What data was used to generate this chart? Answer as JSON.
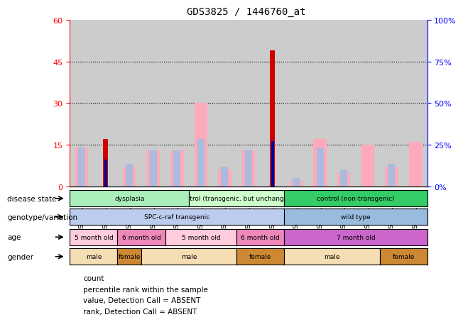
{
  "title": "GDS3825 / 1446760_at",
  "samples": [
    "GSM351067",
    "GSM351068",
    "GSM351066",
    "GSM351065",
    "GSM351069",
    "GSM351072",
    "GSM351094",
    "GSM351071",
    "GSM351064",
    "GSM351070",
    "GSM351095",
    "GSM351144",
    "GSM351146",
    "GSM351145",
    "GSM351147"
  ],
  "count_values": [
    0,
    17,
    0,
    0,
    0,
    0,
    0,
    0,
    49,
    0,
    0,
    0,
    0,
    0,
    0
  ],
  "percentile_values": [
    0,
    16,
    0,
    0,
    0,
    0,
    0,
    0,
    27,
    0,
    0,
    0,
    0,
    0,
    0
  ],
  "value_absent": [
    14,
    0,
    7,
    13,
    13,
    30,
    6,
    13,
    0,
    2,
    17,
    5,
    15,
    7,
    16
  ],
  "rank_absent": [
    14,
    0,
    8,
    13,
    13,
    17,
    7,
    13,
    0,
    3,
    14,
    6,
    0,
    8,
    0
  ],
  "ylim_left": [
    0,
    60
  ],
  "ylim_right": [
    0,
    100
  ],
  "yticks_left": [
    0,
    15,
    30,
    45,
    60
  ],
  "yticks_right": [
    0,
    25,
    50,
    75,
    100
  ],
  "ytick_labels_left": [
    "0",
    "15",
    "30",
    "45",
    "60"
  ],
  "ytick_labels_right": [
    "0%",
    "25%",
    "50%",
    "75%",
    "100%"
  ],
  "disease_state_groups": [
    {
      "label": "dysplasia",
      "start": 0,
      "end": 5,
      "color": "#AAEEBB"
    },
    {
      "label": "control (transgenic, but unchanged)",
      "start": 5,
      "end": 9,
      "color": "#CCFFCC"
    },
    {
      "label": "control (non-transgenic)",
      "start": 9,
      "end": 15,
      "color": "#33CC66"
    }
  ],
  "genotype_groups": [
    {
      "label": "SPC-c-raf transgenic",
      "start": 0,
      "end": 9,
      "color": "#BBCCEE"
    },
    {
      "label": "wild type",
      "start": 9,
      "end": 15,
      "color": "#99BBDD"
    }
  ],
  "age_groups": [
    {
      "label": "5 month old",
      "start": 0,
      "end": 2,
      "color": "#FFCCDD"
    },
    {
      "label": "6 month old",
      "start": 2,
      "end": 4,
      "color": "#EE88BB"
    },
    {
      "label": "5 month old",
      "start": 4,
      "end": 7,
      "color": "#FFCCDD"
    },
    {
      "label": "6 month old",
      "start": 7,
      "end": 9,
      "color": "#EE88BB"
    },
    {
      "label": "7 month old",
      "start": 9,
      "end": 15,
      "color": "#CC66CC"
    }
  ],
  "gender_groups": [
    {
      "label": "male",
      "start": 0,
      "end": 2,
      "color": "#F5DEB3"
    },
    {
      "label": "female",
      "start": 2,
      "end": 3,
      "color": "#CC8833"
    },
    {
      "label": "male",
      "start": 3,
      "end": 7,
      "color": "#F5DEB3"
    },
    {
      "label": "female",
      "start": 7,
      "end": 9,
      "color": "#CC8833"
    },
    {
      "label": "male",
      "start": 9,
      "end": 13,
      "color": "#F5DEB3"
    },
    {
      "label": "female",
      "start": 13,
      "end": 15,
      "color": "#CC8833"
    }
  ],
  "row_labels": [
    "disease state",
    "genotype/variation",
    "age",
    "gender"
  ],
  "count_color": "#CC0000",
  "percentile_color": "#000099",
  "value_absent_color": "#FFAABB",
  "rank_absent_color": "#AABBDD",
  "bg_color": "#CCCCCC",
  "legend_items": [
    {
      "label": "count",
      "color": "#CC0000",
      "marker": "s"
    },
    {
      "label": "percentile rank within the sample",
      "color": "#000099",
      "marker": "s"
    },
    {
      "label": "value, Detection Call = ABSENT",
      "color": "#FFAABB",
      "marker": "s"
    },
    {
      "label": "rank, Detection Call = ABSENT",
      "color": "#AABBDD",
      "marker": "s"
    }
  ]
}
